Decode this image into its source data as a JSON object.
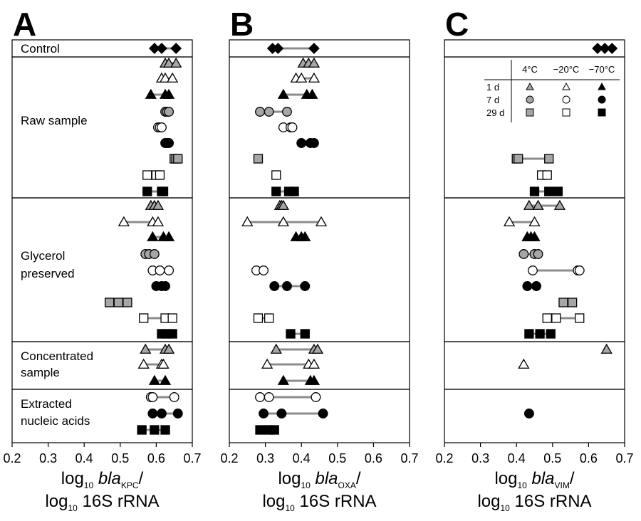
{
  "figure": {
    "panel_letters": [
      "A",
      "B",
      "C"
    ],
    "group_labels": [
      [
        "Control"
      ],
      [
        "Raw sample"
      ],
      [
        "Glycerol",
        "preserved"
      ],
      [
        "Concentrated",
        "sample"
      ],
      [
        "Extracted",
        "nucleic acids"
      ]
    ],
    "x_axis_titles": [
      {
        "line1_pre": "log",
        "line1_sub1": "10",
        "line1_mid": " ",
        "line1_ital": "bla",
        "line1_sub2": "KPC",
        "line1_post": "/",
        "line2_pre": "log",
        "line2_sub": "10",
        "line2_post": " 16S rRNA"
      },
      {
        "line1_pre": "log",
        "line1_sub1": "10",
        "line1_mid": " ",
        "line1_ital": "bla",
        "line1_sub2": "OXA",
        "line1_post": "/",
        "line2_pre": "log",
        "line2_sub": "10",
        "line2_post": " 16S rRNA"
      },
      {
        "line1_pre": "log",
        "line1_sub1": "10",
        "line1_mid": " ",
        "line1_ital": "bla",
        "line1_sub2": "VIM",
        "line1_post": "/",
        "line2_pre": "log",
        "line2_sub": "10",
        "line2_post": " 16S rRNA"
      }
    ],
    "legend": {
      "col_headers": [
        "4°C",
        "−20°C",
        "−70°C"
      ],
      "row_headers": [
        "1 d",
        "7 d",
        "29 d"
      ],
      "row_shapes": [
        "triangle",
        "circle",
        "square"
      ],
      "col_fills": [
        "gray",
        "white",
        "black"
      ]
    },
    "colors": {
      "black": "#000000",
      "gray": "#a6a6a6",
      "white": "#ffffff",
      "line": "#8c8c8c"
    }
  },
  "chart_data": [
    {
      "type": "scatter",
      "panel": "A",
      "xlabel": "log10 blaKPC/ log10 16S rRNA",
      "xlim": [
        0.2,
        0.7
      ],
      "xticks": [
        "0.2",
        "0.3",
        "0.4",
        "0.5",
        "0.6",
        "0.7"
      ],
      "rows": [
        {
          "group": "Control",
          "shape": "diamond",
          "fill": "black",
          "values": [
            0.595,
            0.615,
            0.655
          ]
        },
        {
          "group": "Raw sample",
          "shape": "triangle",
          "fill": "gray",
          "values": [
            0.625,
            0.635,
            0.655
          ]
        },
        {
          "group": "Raw sample",
          "shape": "triangle",
          "fill": "white",
          "values": [
            0.615,
            0.625,
            0.645
          ]
        },
        {
          "group": "Raw sample",
          "shape": "triangle",
          "fill": "black",
          "values": [
            0.585,
            0.625,
            0.635
          ]
        },
        {
          "group": "Raw sample",
          "shape": "circle",
          "fill": "gray",
          "values": [
            0.625,
            0.63,
            0.635
          ]
        },
        {
          "group": "Raw sample",
          "shape": "circle",
          "fill": "white",
          "values": [
            0.605,
            0.61,
            0.615
          ]
        },
        {
          "group": "Raw sample",
          "shape": "circle",
          "fill": "black",
          "values": [
            0.625,
            0.63,
            0.635
          ]
        },
        {
          "group": "Raw sample",
          "shape": "square",
          "fill": "gray",
          "values": [
            0.65,
            0.655,
            0.66
          ]
        },
        {
          "group": "Raw sample",
          "shape": "square",
          "fill": "white",
          "values": [
            0.575,
            0.6,
            0.61
          ]
        },
        {
          "group": "Raw sample",
          "shape": "square",
          "fill": "black",
          "values": [
            0.575,
            0.615,
            0.62
          ]
        },
        {
          "group": "Glycerol preserved",
          "shape": "triangle",
          "fill": "gray",
          "values": [
            0.585,
            0.595,
            0.605
          ]
        },
        {
          "group": "Glycerol preserved",
          "shape": "triangle",
          "fill": "white",
          "values": [
            0.51,
            0.59,
            0.605
          ]
        },
        {
          "group": "Glycerol preserved",
          "shape": "triangle",
          "fill": "black",
          "values": [
            0.59,
            0.62,
            0.635
          ]
        },
        {
          "group": "Glycerol preserved",
          "shape": "circle",
          "fill": "gray",
          "values": [
            0.57,
            0.58,
            0.595
          ]
        },
        {
          "group": "Glycerol preserved",
          "shape": "circle",
          "fill": "white",
          "values": [
            0.59,
            0.61,
            0.635
          ]
        },
        {
          "group": "Glycerol preserved",
          "shape": "circle",
          "fill": "black",
          "values": [
            0.6,
            0.615,
            0.625
          ]
        },
        {
          "group": "Glycerol preserved",
          "shape": "square",
          "fill": "gray",
          "values": [
            0.47,
            0.495,
            0.52
          ]
        },
        {
          "group": "Glycerol preserved",
          "shape": "square",
          "fill": "white",
          "values": [
            0.565,
            0.625,
            0.645
          ]
        },
        {
          "group": "Glycerol preserved",
          "shape": "square",
          "fill": "black",
          "values": [
            0.615,
            0.63,
            0.645
          ]
        },
        {
          "group": "Concentrated sample",
          "shape": "triangle",
          "fill": "gray",
          "values": [
            0.57,
            0.625,
            0.635
          ]
        },
        {
          "group": "Concentrated sample",
          "shape": "triangle",
          "fill": "white",
          "values": [
            0.565,
            0.615,
            0.62
          ]
        },
        {
          "group": "Concentrated sample",
          "shape": "triangle",
          "fill": "black",
          "values": [
            0.595,
            0.625
          ]
        },
        {
          "group": "Extracted nucleic acids",
          "shape": "circle",
          "fill": "white",
          "values": [
            0.585,
            0.59,
            0.65
          ]
        },
        {
          "group": "Extracted nucleic acids",
          "shape": "circle",
          "fill": "black",
          "values": [
            0.59,
            0.615,
            0.66
          ]
        },
        {
          "group": "Extracted nucleic acids",
          "shape": "square",
          "fill": "black",
          "values": [
            0.56,
            0.595,
            0.625
          ]
        }
      ]
    },
    {
      "type": "scatter",
      "panel": "B",
      "xlabel": "log10 blaOXA/ log10 16S rRNA",
      "xlim": [
        0.2,
        0.7
      ],
      "xticks": [
        "0.2",
        "0.3",
        "0.4",
        "0.5",
        "0.6",
        "0.7"
      ],
      "rows": [
        {
          "group": "Control",
          "shape": "diamond",
          "fill": "black",
          "values": [
            0.32,
            0.335,
            0.435
          ]
        },
        {
          "group": "Raw sample",
          "shape": "triangle",
          "fill": "gray",
          "values": [
            0.405,
            0.42,
            0.435
          ]
        },
        {
          "group": "Raw sample",
          "shape": "triangle",
          "fill": "white",
          "values": [
            0.385,
            0.4,
            0.435
          ]
        },
        {
          "group": "Raw sample",
          "shape": "triangle",
          "fill": "black",
          "values": [
            0.35,
            0.415,
            0.43
          ]
        },
        {
          "group": "Raw sample",
          "shape": "circle",
          "fill": "gray",
          "values": [
            0.285,
            0.31,
            0.36
          ]
        },
        {
          "group": "Raw sample",
          "shape": "circle",
          "fill": "white",
          "values": [
            0.35,
            0.37,
            0.375
          ]
        },
        {
          "group": "Raw sample",
          "shape": "circle",
          "fill": "black",
          "values": [
            0.4,
            0.425,
            0.435
          ]
        },
        {
          "group": "Raw sample",
          "shape": "square",
          "fill": "gray",
          "values": [
            0.28
          ]
        },
        {
          "group": "Raw sample",
          "shape": "square",
          "fill": "white",
          "values": [
            0.33
          ]
        },
        {
          "group": "Raw sample",
          "shape": "square",
          "fill": "black",
          "values": [
            0.33,
            0.365,
            0.38
          ]
        },
        {
          "group": "Glycerol preserved",
          "shape": "triangle",
          "fill": "gray",
          "values": [
            0.34,
            0.345,
            0.35
          ]
        },
        {
          "group": "Glycerol preserved",
          "shape": "triangle",
          "fill": "white",
          "values": [
            0.25,
            0.35,
            0.455
          ]
        },
        {
          "group": "Glycerol preserved",
          "shape": "triangle",
          "fill": "black",
          "values": [
            0.385,
            0.4,
            0.41
          ]
        },
        {
          "group": "Glycerol preserved",
          "shape": "circle",
          "fill": "white",
          "values": [
            0.275,
            0.295
          ]
        },
        {
          "group": "Glycerol preserved",
          "shape": "circle",
          "fill": "black",
          "values": [
            0.325,
            0.36,
            0.41
          ]
        },
        {
          "group": "Glycerol preserved",
          "shape": "square",
          "fill": "white",
          "values": [
            0.28,
            0.31
          ]
        },
        {
          "group": "Glycerol preserved",
          "shape": "square",
          "fill": "black",
          "values": [
            0.37,
            0.41
          ]
        },
        {
          "group": "Concentrated sample",
          "shape": "triangle",
          "fill": "gray",
          "values": [
            0.33,
            0.435,
            0.445
          ]
        },
        {
          "group": "Concentrated sample",
          "shape": "triangle",
          "fill": "white",
          "values": [
            0.305,
            0.42,
            0.435
          ]
        },
        {
          "group": "Concentrated sample",
          "shape": "triangle",
          "fill": "black",
          "values": [
            0.35,
            0.425,
            0.435
          ]
        },
        {
          "group": "Extracted nucleic acids",
          "shape": "circle",
          "fill": "white",
          "values": [
            0.285,
            0.31,
            0.44
          ]
        },
        {
          "group": "Extracted nucleic acids",
          "shape": "circle",
          "fill": "black",
          "values": [
            0.295,
            0.345,
            0.46
          ]
        },
        {
          "group": "Extracted nucleic acids",
          "shape": "square",
          "fill": "black",
          "values": [
            0.285,
            0.31,
            0.325
          ]
        }
      ]
    },
    {
      "type": "scatter",
      "panel": "C",
      "xlabel": "log10 blaVIM/ log10 16S rRNA",
      "xlim": [
        0.2,
        0.7
      ],
      "xticks": [
        "0.2",
        "0.3",
        "0.4",
        "0.5",
        "0.6",
        "0.7"
      ],
      "rows": [
        {
          "group": "Control",
          "shape": "diamond",
          "fill": "black",
          "values": [
            0.625,
            0.645,
            0.665
          ]
        },
        {
          "group": "Raw sample",
          "shape": "square",
          "fill": "gray",
          "values": [
            0.4,
            0.405,
            0.49
          ]
        },
        {
          "group": "Raw sample",
          "shape": "square",
          "fill": "white",
          "values": [
            0.47,
            0.485
          ]
        },
        {
          "group": "Raw sample",
          "shape": "square",
          "fill": "black",
          "values": [
            0.45,
            0.49,
            0.515
          ]
        },
        {
          "group": "Glycerol preserved",
          "shape": "triangle",
          "fill": "gray",
          "values": [
            0.435,
            0.46,
            0.52
          ]
        },
        {
          "group": "Glycerol preserved",
          "shape": "triangle",
          "fill": "white",
          "values": [
            0.38,
            0.45
          ]
        },
        {
          "group": "Glycerol preserved",
          "shape": "triangle",
          "fill": "black",
          "values": [
            0.43,
            0.44,
            0.45
          ]
        },
        {
          "group": "Glycerol preserved",
          "shape": "circle",
          "fill": "gray",
          "values": [
            0.42,
            0.45,
            0.46
          ]
        },
        {
          "group": "Glycerol preserved",
          "shape": "circle",
          "fill": "white",
          "values": [
            0.445,
            0.57,
            0.575
          ]
        },
        {
          "group": "Glycerol preserved",
          "shape": "circle",
          "fill": "black",
          "values": [
            0.43,
            0.455
          ]
        },
        {
          "group": "Glycerol preserved",
          "shape": "square",
          "fill": "gray",
          "values": [
            0.53,
            0.555
          ]
        },
        {
          "group": "Glycerol preserved",
          "shape": "square",
          "fill": "white",
          "values": [
            0.485,
            0.51,
            0.575
          ]
        },
        {
          "group": "Glycerol preserved",
          "shape": "square",
          "fill": "black",
          "values": [
            0.435,
            0.465,
            0.495
          ]
        },
        {
          "group": "Concentrated sample",
          "shape": "triangle",
          "fill": "gray",
          "values": [
            0.65
          ]
        },
        {
          "group": "Concentrated sample",
          "shape": "triangle",
          "fill": "white",
          "values": [
            0.42
          ]
        },
        {
          "group": "Extracted nucleic acids",
          "shape": "circle",
          "fill": "black",
          "values": [
            0.435
          ]
        }
      ]
    }
  ]
}
